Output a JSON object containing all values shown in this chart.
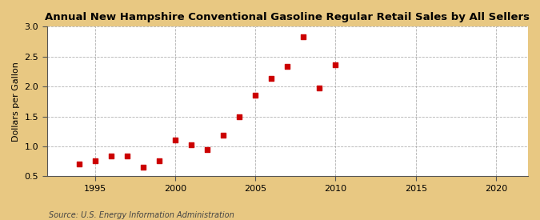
{
  "title": "Annual New Hampshire Conventional Gasoline Regular Retail Sales by All Sellers",
  "ylabel": "Dollars per Gallon",
  "source": "Source: U.S. Energy Information Administration",
  "fig_background_color": "#e8c882",
  "plot_background_color": "#ffffff",
  "marker_color": "#cc0000",
  "xlim": [
    1992,
    2022
  ],
  "ylim": [
    0.5,
    3.0
  ],
  "xticks": [
    1995,
    2000,
    2005,
    2010,
    2015,
    2020
  ],
  "yticks": [
    0.5,
    1.0,
    1.5,
    2.0,
    2.5,
    3.0
  ],
  "years": [
    1994,
    1995,
    1996,
    1997,
    1998,
    1999,
    2000,
    2001,
    2002,
    2003,
    2004,
    2005,
    2006,
    2007,
    2008,
    2009,
    2010
  ],
  "values": [
    0.71,
    0.76,
    0.84,
    0.84,
    0.65,
    0.76,
    1.11,
    1.03,
    0.95,
    1.18,
    1.49,
    1.86,
    2.14,
    2.34,
    2.83,
    1.97,
    2.36
  ]
}
